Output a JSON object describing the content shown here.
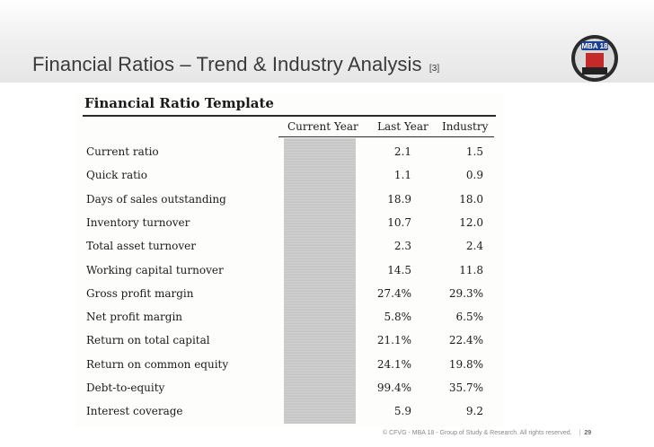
{
  "slide": {
    "title": "Financial Ratios – Trend & Industry Analysis",
    "ref": "[3]",
    "logo_text": "MBA 18"
  },
  "template": {
    "title": "Financial Ratio Template",
    "columns": [
      "Current Year",
      "Last Year",
      "Industry"
    ],
    "rows": [
      {
        "label": "Current ratio",
        "last_year": "2.1",
        "industry": "1.5"
      },
      {
        "label": "Quick ratio",
        "last_year": "1.1",
        "industry": "0.9"
      },
      {
        "label": "Days of sales outstanding",
        "last_year": "18.9",
        "industry": "18.0"
      },
      {
        "label": "Inventory turnover",
        "last_year": "10.7",
        "industry": "12.0"
      },
      {
        "label": "Total asset turnover",
        "last_year": "2.3",
        "industry": "2.4"
      },
      {
        "label": "Working capital turnover",
        "last_year": "14.5",
        "industry": "11.8"
      },
      {
        "label": "Gross profit margin",
        "last_year": "27.4%",
        "industry": "29.3%"
      },
      {
        "label": "Net profit margin",
        "last_year": "5.8%",
        "industry": "6.5%"
      },
      {
        "label": "Return on total capital",
        "last_year": "21.1%",
        "industry": "22.4%"
      },
      {
        "label": "Return on common equity",
        "last_year": "24.1%",
        "industry": "19.8%"
      },
      {
        "label": "Debt-to-equity",
        "last_year": "99.4%",
        "industry": "35.7%"
      },
      {
        "label": "Interest coverage",
        "last_year": "5.9",
        "industry": "9.2"
      }
    ]
  },
  "footer": {
    "copyright": "© CFVG - MBA 18 - Group of Study & Research. All rights reserved.",
    "page": "29"
  }
}
